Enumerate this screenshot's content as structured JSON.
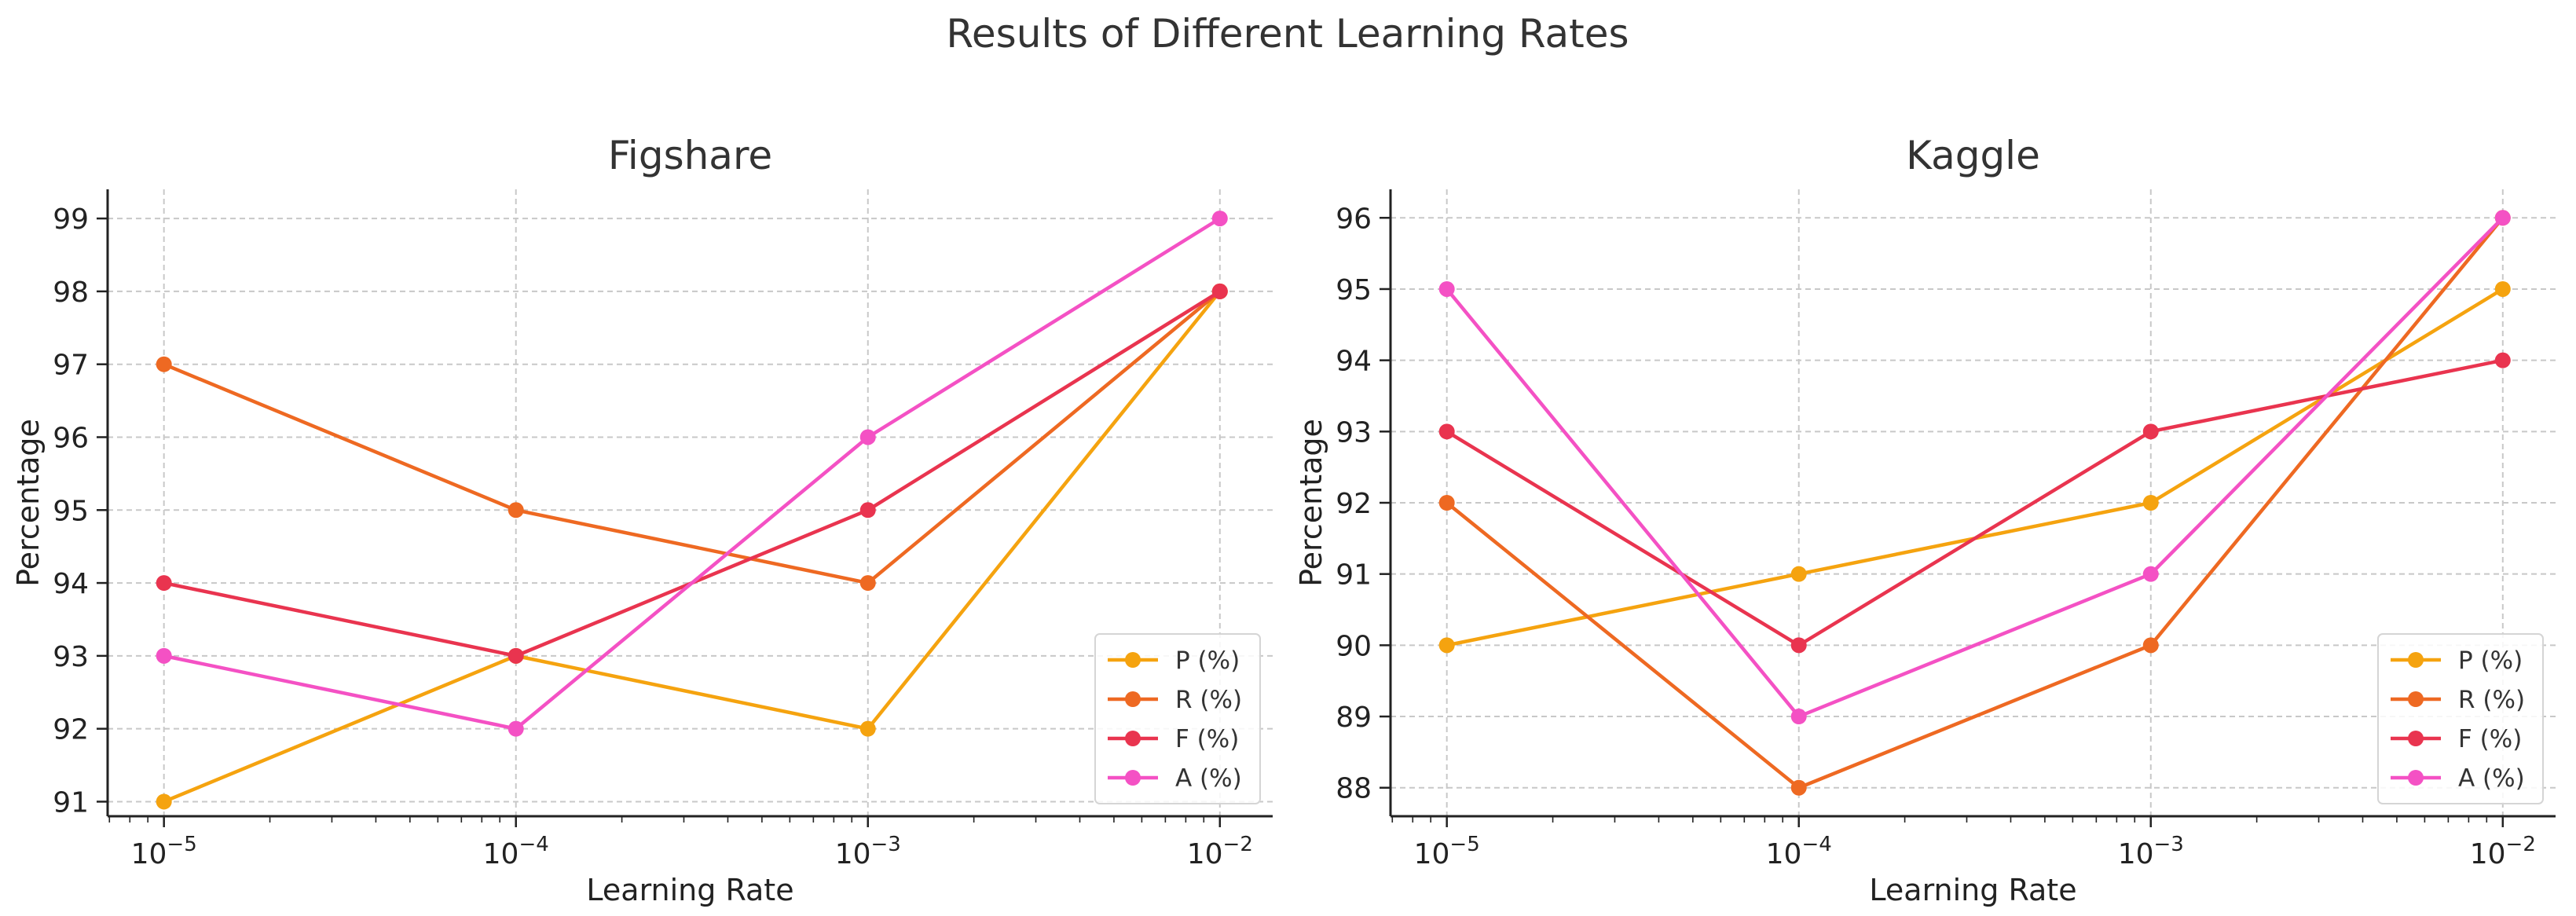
{
  "figure": {
    "title": "Results of Different Learning Rates"
  },
  "colors": {
    "P (%)": "#f5a30f",
    "R (%)": "#ee6922",
    "F (%)": "#e9344f",
    "A (%)": "#f451c4"
  },
  "chart_data": [
    {
      "type": "line",
      "title": "Figshare",
      "xlabel": "Learning Rate",
      "ylabel": "Percentage",
      "xscale": "log",
      "x_exponents": [
        -5,
        -4,
        -3,
        -2
      ],
      "x_tick_base": "10",
      "x_tick_exponents": [
        "−5",
        "−4",
        "−3",
        "−2"
      ],
      "ylim": [
        90.8,
        99.4
      ],
      "yticks": [
        91,
        92,
        93,
        94,
        95,
        96,
        97,
        98,
        99
      ],
      "grid": true,
      "legend_position": "lower-right",
      "series": [
        {
          "name": "P (%)",
          "values": [
            91,
            93,
            92,
            98
          ]
        },
        {
          "name": "R (%)",
          "values": [
            97,
            95,
            94,
            98
          ]
        },
        {
          "name": "F (%)",
          "values": [
            94,
            93,
            95,
            98
          ]
        },
        {
          "name": "A (%)",
          "values": [
            93,
            92,
            96,
            99
          ]
        }
      ]
    },
    {
      "type": "line",
      "title": "Kaggle",
      "xlabel": "Learning Rate",
      "ylabel": "Percentage",
      "xscale": "log",
      "x_exponents": [
        -5,
        -4,
        -3,
        -2
      ],
      "x_tick_base": "10",
      "x_tick_exponents": [
        "−5",
        "−4",
        "−3",
        "−2"
      ],
      "ylim": [
        87.6,
        96.4
      ],
      "yticks": [
        88,
        89,
        90,
        91,
        92,
        93,
        94,
        95,
        96
      ],
      "grid": true,
      "legend_position": "lower-right",
      "series": [
        {
          "name": "P (%)",
          "values": [
            90,
            91,
            92,
            95
          ]
        },
        {
          "name": "R (%)",
          "values": [
            92,
            88,
            90,
            96
          ]
        },
        {
          "name": "F (%)",
          "values": [
            93,
            90,
            93,
            94
          ]
        },
        {
          "name": "A (%)",
          "values": [
            95,
            89,
            91,
            96
          ]
        }
      ]
    }
  ]
}
